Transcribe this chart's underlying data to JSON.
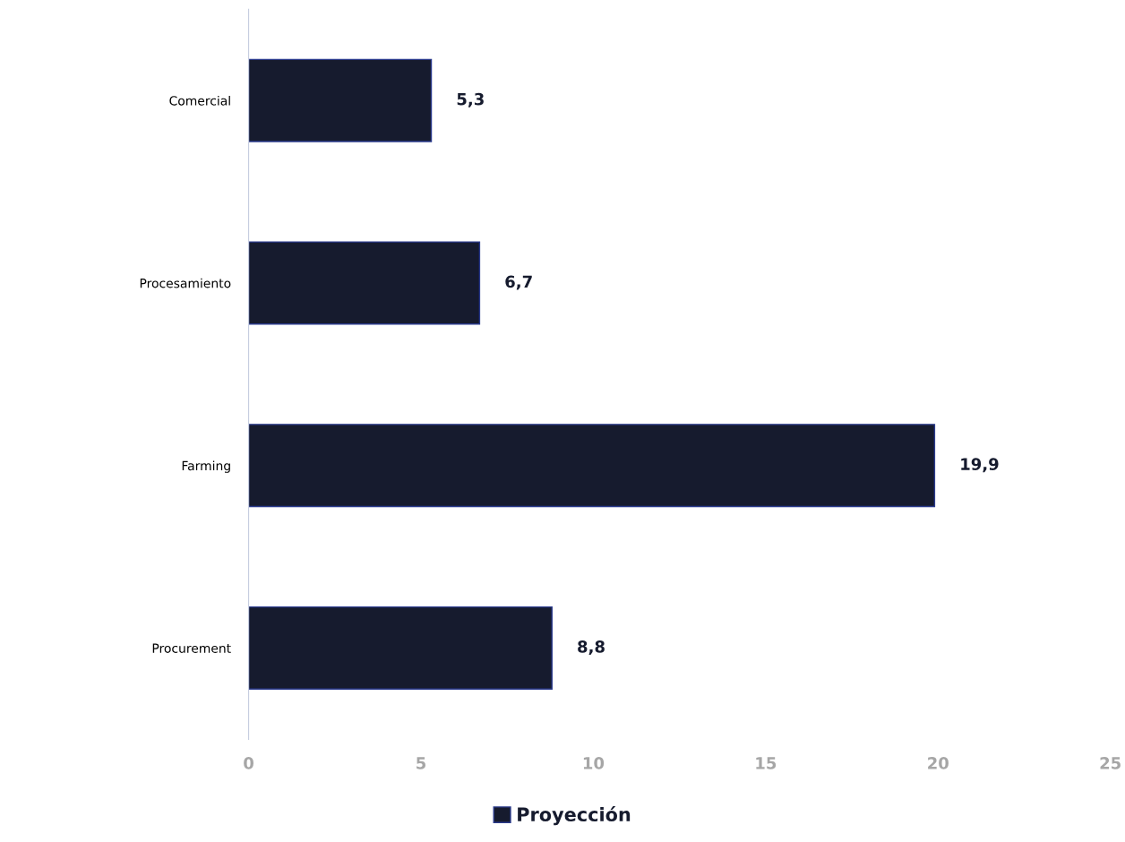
{
  "chart_data": {
    "type": "bar",
    "orientation": "horizontal",
    "categories": [
      "Comercial",
      "Procesamiento",
      "Farming",
      "Procurement"
    ],
    "series": [
      {
        "name": "Proyección",
        "color": "#161b2e",
        "values": [
          5.3,
          6.7,
          19.9,
          8.8
        ],
        "value_labels": [
          "5,3",
          "6,7",
          "19,9",
          "8,8"
        ]
      }
    ],
    "xlim": [
      0,
      25
    ],
    "xticks": [
      0,
      5,
      10,
      15,
      20,
      25
    ],
    "grid": false,
    "legend": "bottom"
  }
}
